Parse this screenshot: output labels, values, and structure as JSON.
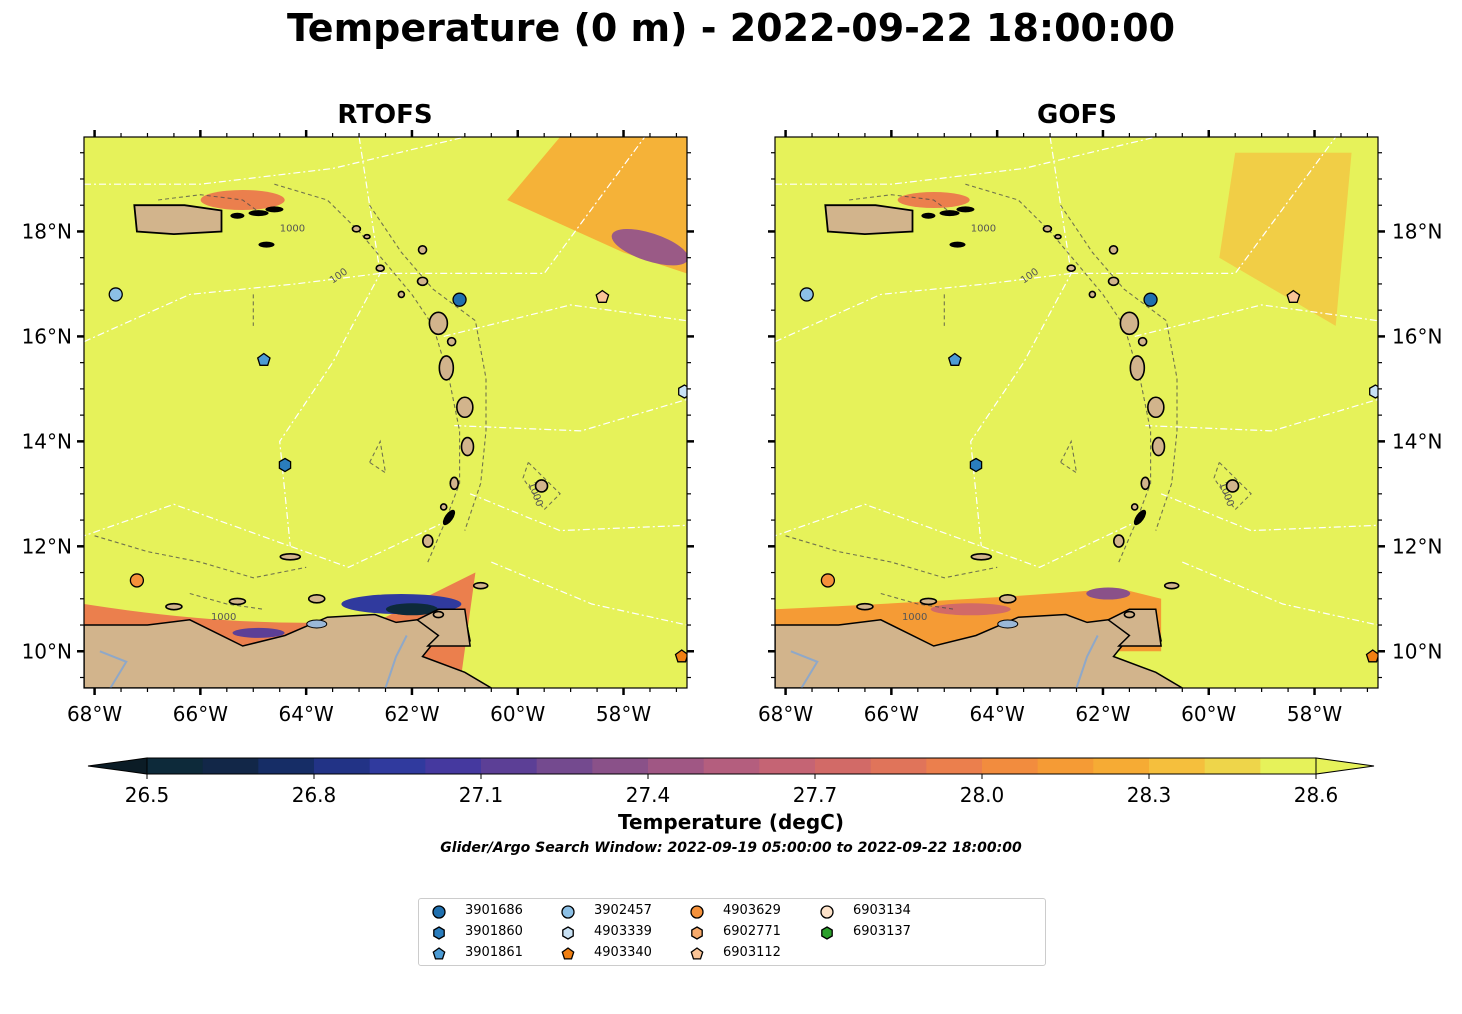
{
  "title": "Temperature (0 m) - 2022-09-22 18:00:00",
  "panels": [
    {
      "title": "RTOFS"
    },
    {
      "title": "GOFS"
    }
  ],
  "axes": {
    "lon_ticks": [
      "68°W",
      "66°W",
      "64°W",
      "62°W",
      "60°W",
      "58°W"
    ],
    "lat_ticks": [
      "18°N",
      "16°N",
      "14°N",
      "12°N",
      "10°N"
    ],
    "lon_range": [
      -68.2,
      -56.8
    ],
    "lat_range": [
      9.3,
      19.8
    ]
  },
  "isobath_label": "1000",
  "isobath_label_2": "100",
  "colorbar": {
    "ticks": [
      "26.5",
      "26.8",
      "27.1",
      "27.4",
      "27.7",
      "28.0",
      "28.3",
      "28.6"
    ],
    "label": "Temperature (degC)",
    "subtitle": "Glider/Argo Search Window: 2022-09-19 05:00:00 to 2022-09-22 18:00:00",
    "colors": [
      "#0d2a3a",
      "#122748",
      "#162d66",
      "#223386",
      "#303a9e",
      "#45399f",
      "#5c3f96",
      "#744a8f",
      "#8a5189",
      "#a05784",
      "#b45e7e",
      "#c56474",
      "#d26a67",
      "#e0745a",
      "#eb7f4d",
      "#f28c3e",
      "#f59b35",
      "#f6ab34",
      "#f5bf3d",
      "#eed54a",
      "#e6f25a"
    ]
  },
  "legend": {
    "items": [
      {
        "label": "3901686",
        "marker": "circle",
        "color": "#1f6fae"
      },
      {
        "label": "3901860",
        "marker": "hexagon",
        "color": "#2a7dbd"
      },
      {
        "label": "3901861",
        "marker": "pentagon",
        "color": "#4c9bd4"
      },
      {
        "label": "3902457",
        "marker": "circle",
        "color": "#8cc0e6"
      },
      {
        "label": "4903339",
        "marker": "hexagon",
        "color": "#c9e2f5"
      },
      {
        "label": "4903340",
        "marker": "pentagon",
        "color": "#f07f12"
      },
      {
        "label": "4903629",
        "marker": "circle",
        "color": "#f5913a"
      },
      {
        "label": "6902771",
        "marker": "hexagon",
        "color": "#f7aa6b"
      },
      {
        "label": "6903112",
        "marker": "pentagon",
        "color": "#fac497"
      },
      {
        "label": "6903134",
        "marker": "circle",
        "color": "#fde2c9"
      },
      {
        "label": "6903137",
        "marker": "hexagon",
        "color": "#2ca02c"
      }
    ]
  },
  "floats": [
    {
      "id": "3902457",
      "lon": -67.6,
      "lat": 16.8
    },
    {
      "id": "3901686",
      "lon": -61.1,
      "lat": 16.7
    },
    {
      "id": "6903112",
      "lon": -58.4,
      "lat": 16.75
    },
    {
      "id": "3901861",
      "lon": -64.8,
      "lat": 15.55
    },
    {
      "id": "4903339",
      "lon": -56.85,
      "lat": 14.95
    },
    {
      "id": "3901860",
      "lon": -64.4,
      "lat": 13.55
    },
    {
      "id": "4903629",
      "lon": -67.2,
      "lat": 11.35
    },
    {
      "id": "4903340",
      "lon": -56.9,
      "lat": 9.9
    }
  ],
  "land_color": "#d2b48c",
  "ocean_color": "#e6f25a"
}
